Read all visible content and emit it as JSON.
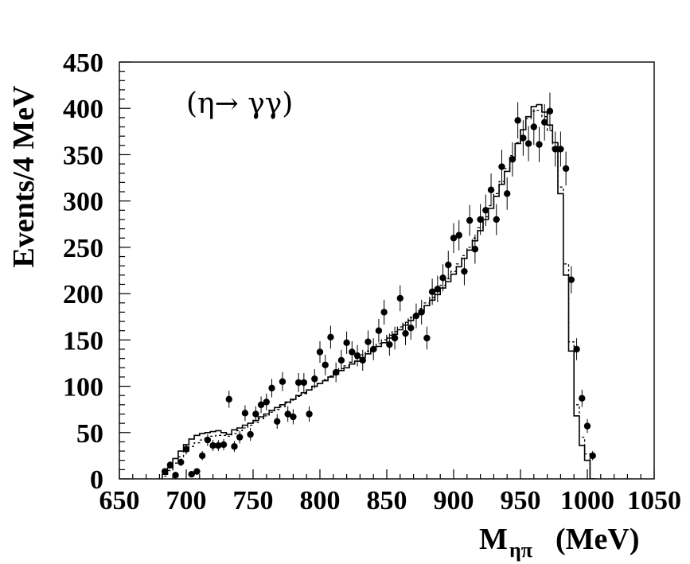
{
  "chart_data": {
    "type": "scatter",
    "xlabel": "M",
    "xlabel_sub": "ηπ",
    "xlabel_unit": "(MeV)",
    "ylabel": "Events/4 MeV",
    "annotation": "(η→ γγ)",
    "xlim": [
      650,
      1050
    ],
    "ylim": [
      0,
      450
    ],
    "x_ticks": [
      650,
      700,
      750,
      800,
      850,
      900,
      950,
      1000,
      1050
    ],
    "y_ticks": [
      0,
      50,
      100,
      150,
      200,
      250,
      300,
      350,
      400,
      450
    ],
    "grid": false,
    "series": [
      {
        "kind": "data-points-with-errors",
        "points": [
          [
            684,
            8
          ],
          [
            688,
            15
          ],
          [
            692,
            4
          ],
          [
            696,
            18
          ],
          [
            700,
            32
          ],
          [
            704,
            5
          ],
          [
            708,
            8
          ],
          [
            712,
            25
          ],
          [
            716,
            42
          ],
          [
            720,
            36
          ],
          [
            724,
            36
          ],
          [
            728,
            37
          ],
          [
            732,
            86
          ],
          [
            736,
            35
          ],
          [
            740,
            45
          ],
          [
            744,
            71
          ],
          [
            748,
            48
          ],
          [
            752,
            70
          ],
          [
            756,
            80
          ],
          [
            760,
            83
          ],
          [
            764,
            98
          ],
          [
            768,
            62
          ],
          [
            772,
            105
          ],
          [
            776,
            70
          ],
          [
            780,
            67
          ],
          [
            784,
            104
          ],
          [
            788,
            104
          ],
          [
            792,
            70
          ],
          [
            796,
            108
          ],
          [
            800,
            137
          ],
          [
            804,
            123
          ],
          [
            808,
            153
          ],
          [
            812,
            115
          ],
          [
            816,
            128
          ],
          [
            820,
            147
          ],
          [
            824,
            137
          ],
          [
            828,
            133
          ],
          [
            832,
            128
          ],
          [
            836,
            148
          ],
          [
            840,
            140
          ],
          [
            844,
            160
          ],
          [
            848,
            180
          ],
          [
            852,
            145
          ],
          [
            856,
            152
          ],
          [
            860,
            195
          ],
          [
            864,
            157
          ],
          [
            868,
            163
          ],
          [
            872,
            176
          ],
          [
            876,
            180
          ],
          [
            880,
            152
          ],
          [
            884,
            202
          ],
          [
            888,
            205
          ],
          [
            892,
            217
          ],
          [
            896,
            231
          ],
          [
            900,
            260
          ],
          [
            904,
            263
          ],
          [
            908,
            224
          ],
          [
            912,
            279
          ],
          [
            916,
            248
          ],
          [
            920,
            280
          ],
          [
            924,
            290
          ],
          [
            928,
            312
          ],
          [
            932,
            280
          ],
          [
            936,
            337
          ],
          [
            940,
            308
          ],
          [
            944,
            345
          ],
          [
            948,
            387
          ],
          [
            952,
            368
          ],
          [
            956,
            362
          ],
          [
            960,
            380
          ],
          [
            964,
            361
          ],
          [
            968,
            385
          ],
          [
            972,
            397
          ],
          [
            976,
            356
          ],
          [
            980,
            356
          ],
          [
            984,
            335
          ],
          [
            988,
            215
          ],
          [
            992,
            140
          ],
          [
            996,
            87
          ],
          [
            1000,
            57
          ],
          [
            1004,
            25
          ]
        ]
      },
      {
        "kind": "histogram-solid",
        "edges_start": 682,
        "bin_width": 4,
        "values": [
          5,
          12,
          22,
          30,
          37,
          43,
          47,
          49,
          50,
          51,
          52,
          50,
          48,
          53,
          55,
          58,
          60,
          63,
          67,
          70,
          74,
          77,
          80,
          83,
          86,
          90,
          93,
          96,
          100,
          103,
          106,
          110,
          113,
          117,
          120,
          124,
          127,
          131,
          135,
          139,
          143,
          147,
          152,
          156,
          161,
          166,
          171,
          176,
          181,
          187,
          193,
          199,
          206,
          213,
          221,
          229,
          238,
          247,
          257,
          268,
          280,
          292,
          305,
          318,
          332,
          347,
          362,
          377,
          391,
          402,
          404,
          396,
          382,
          363,
          308,
          220,
          138,
          68,
          36,
          20,
          0
        ]
      },
      {
        "kind": "histogram-dashed",
        "edges_start": 682,
        "bin_width": 4,
        "values": [
          3,
          9,
          17,
          24,
          30,
          35,
          39,
          42,
          44,
          46,
          47,
          47,
          46,
          49,
          52,
          55,
          58,
          61,
          65,
          68,
          72,
          75,
          78,
          82,
          85,
          89,
          92,
          96,
          100,
          103,
          107,
          111,
          115,
          119,
          122,
          126,
          130,
          134,
          138,
          142,
          146,
          150,
          155,
          159,
          164,
          169,
          174,
          179,
          184,
          190,
          196,
          202,
          209,
          216,
          224,
          232,
          241,
          250,
          260,
          271,
          283,
          295,
          308,
          321,
          335,
          349,
          363,
          377,
          389,
          397,
          398,
          391,
          376,
          357,
          315,
          232,
          148,
          80,
          45,
          27,
          0
        ]
      }
    ]
  }
}
